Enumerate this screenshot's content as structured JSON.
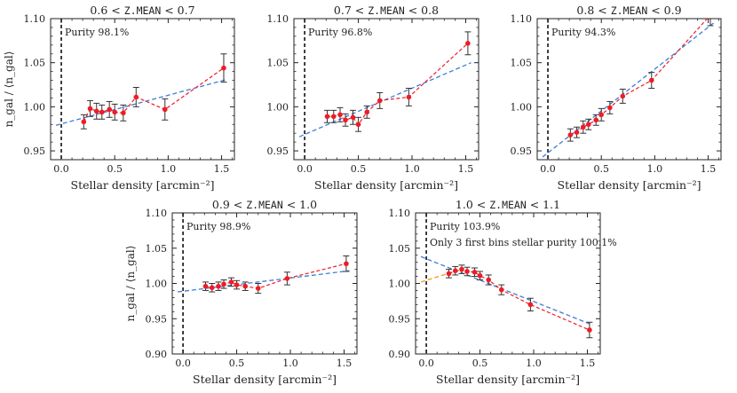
{
  "figure": {
    "ylabel": "n_gal / ⟨n_gal⟩",
    "xlabel": "Stellar density [arcmin⁻²]",
    "colors": {
      "data": "#ee1c25",
      "linear_fit": "#3b7dd8",
      "partial_fit": "#f29a1c",
      "errorbar": "#333333",
      "vline": "#111111"
    }
  },
  "chart_data": [
    {
      "type": "scatter",
      "title_lo": "0.6 <",
      "title_var": "Z_MEAN",
      "title_hi": "< 0.7",
      "annotation": "Purity 98.1%",
      "xlim": [
        -0.1,
        1.62
      ],
      "ylim": [
        0.94,
        1.1
      ],
      "xticks": [
        0.0,
        0.5,
        1.0,
        1.5
      ],
      "yticks": [
        0.95,
        1.0,
        1.05,
        1.1
      ],
      "ytick_labels": [
        "0.95",
        "1.00",
        "1.05",
        "1.10"
      ],
      "xtick_labels": [
        "0.0",
        "0.5",
        "1.0",
        "1.5"
      ],
      "vline_x": 0.0,
      "x": [
        0.21,
        0.27,
        0.33,
        0.38,
        0.45,
        0.5,
        0.58,
        0.7,
        0.97,
        1.52
      ],
      "y": [
        0.983,
        0.998,
        0.995,
        0.994,
        0.997,
        0.994,
        0.993,
        1.011,
        0.997,
        1.044
      ],
      "yerr": [
        0.008,
        0.009,
        0.009,
        0.008,
        0.009,
        0.009,
        0.009,
        0.011,
        0.012,
        0.016
      ],
      "fit": {
        "x0": -0.05,
        "y0": 0.979,
        "x1": 1.55,
        "y1": 1.031
      }
    },
    {
      "type": "scatter",
      "title_lo": "0.7 <",
      "title_var": "Z_MEAN",
      "title_hi": "< 0.8",
      "annotation": "Purity 96.8%",
      "xlim": [
        -0.1,
        1.62
      ],
      "ylim": [
        0.94,
        1.1
      ],
      "xticks": [
        0.0,
        0.5,
        1.0,
        1.5
      ],
      "yticks": [
        0.95,
        1.0,
        1.05,
        1.1
      ],
      "ytick_labels": [
        "0.95",
        "1.00",
        "1.05",
        "1.10"
      ],
      "xtick_labels": [
        "0.0",
        "0.5",
        "1.0",
        "1.5"
      ],
      "vline_x": 0.0,
      "x": [
        0.21,
        0.27,
        0.33,
        0.38,
        0.45,
        0.5,
        0.58,
        0.7,
        0.97,
        1.52
      ],
      "y": [
        0.989,
        0.989,
        0.991,
        0.985,
        0.988,
        0.98,
        0.994,
        1.007,
        1.011,
        1.072
      ],
      "yerr": [
        0.007,
        0.007,
        0.008,
        0.007,
        0.008,
        0.008,
        0.007,
        0.009,
        0.01,
        0.013
      ],
      "fit": {
        "x0": -0.05,
        "y0": 0.966,
        "x1": 1.55,
        "y1": 1.05
      }
    },
    {
      "type": "scatter",
      "title_lo": "0.8 <",
      "title_var": "Z_MEAN",
      "title_hi": "< 0.9",
      "annotation": "Purity 94.3%",
      "xlim": [
        -0.1,
        1.62
      ],
      "ylim": [
        0.94,
        1.1
      ],
      "xticks": [
        0.0,
        0.5,
        1.0,
        1.5
      ],
      "yticks": [
        0.95,
        1.0,
        1.05,
        1.1
      ],
      "ytick_labels": [
        "0.95",
        "1.00",
        "1.05",
        "1.10"
      ],
      "xtick_labels": [
        "0.0",
        "0.5",
        "1.0",
        "1.5"
      ],
      "vline_x": 0.0,
      "x": [
        0.21,
        0.27,
        0.33,
        0.38,
        0.45,
        0.5,
        0.58,
        0.7,
        0.97,
        1.52
      ],
      "y": [
        0.968,
        0.971,
        0.977,
        0.98,
        0.985,
        0.991,
        0.999,
        1.012,
        1.03,
        1.104
      ],
      "yerr": [
        0.007,
        0.006,
        0.007,
        0.006,
        0.006,
        0.007,
        0.007,
        0.008,
        0.009,
        0.012
      ],
      "fit": {
        "x0": -0.05,
        "y0": 0.943,
        "x1": 1.55,
        "y1": 1.095
      }
    },
    {
      "type": "scatter",
      "title_lo": "0.9 <",
      "title_var": "Z_MEAN",
      "title_hi": "< 1.0",
      "annotation": "Purity 98.9%",
      "xlim": [
        -0.1,
        1.62
      ],
      "ylim": [
        0.9,
        1.1
      ],
      "xticks": [
        0.0,
        0.5,
        1.0,
        1.5
      ],
      "yticks": [
        0.9,
        0.95,
        1.0,
        1.05,
        1.1
      ],
      "ytick_labels": [
        "0.90",
        "0.95",
        "1.00",
        "1.05",
        "1.10"
      ],
      "xtick_labels": [
        "0.0",
        "0.5",
        "1.0",
        "1.5"
      ],
      "vline_x": 0.0,
      "x": [
        0.21,
        0.27,
        0.33,
        0.38,
        0.45,
        0.5,
        0.58,
        0.7,
        0.97,
        1.52
      ],
      "y": [
        0.996,
        0.994,
        0.996,
        0.999,
        1.002,
        0.998,
        0.996,
        0.993,
        1.007,
        1.028
      ],
      "yerr": [
        0.006,
        0.006,
        0.006,
        0.006,
        0.006,
        0.006,
        0.006,
        0.007,
        0.009,
        0.011
      ],
      "fit": {
        "x0": -0.05,
        "y0": 0.988,
        "x1": 1.55,
        "y1": 1.018
      }
    },
    {
      "type": "scatter",
      "title_lo": "1.0 <",
      "title_var": "Z_MEAN",
      "title_hi": "< 1.1",
      "annotation": "Purity 103.9%",
      "annotation2": "Only 3 first bins stellar purity 100.1%",
      "xlim": [
        -0.1,
        1.62
      ],
      "ylim": [
        0.9,
        1.1
      ],
      "xticks": [
        0.0,
        0.5,
        1.0,
        1.5
      ],
      "yticks": [
        0.9,
        0.95,
        1.0,
        1.05,
        1.1
      ],
      "ytick_labels": [
        "0.90",
        "0.95",
        "1.00",
        "1.05",
        "1.10"
      ],
      "xtick_labels": [
        "0.0",
        "0.5",
        "1.0",
        "1.5"
      ],
      "vline_x": 0.0,
      "x": [
        0.21,
        0.27,
        0.33,
        0.38,
        0.45,
        0.5,
        0.58,
        0.7,
        0.97,
        1.52
      ],
      "y": [
        1.014,
        1.018,
        1.02,
        1.017,
        1.016,
        1.011,
        1.005,
        0.991,
        0.97,
        0.934
      ],
      "yerr": [
        0.006,
        0.006,
        0.006,
        0.006,
        0.006,
        0.006,
        0.007,
        0.007,
        0.009,
        0.011
      ],
      "fit": {
        "x0": -0.05,
        "y0": 1.038,
        "x1": 1.55,
        "y1": 0.941
      },
      "fit2": {
        "x0": -0.05,
        "y0": 1.002,
        "x1": 0.33,
        "y1": 1.02
      }
    }
  ]
}
